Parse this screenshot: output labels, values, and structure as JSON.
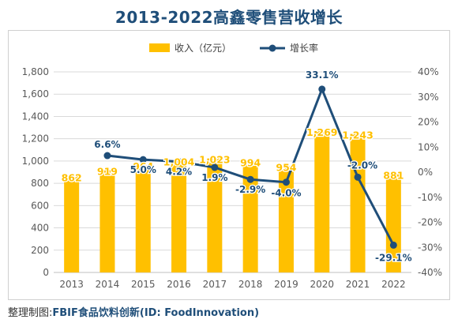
{
  "title": "2013-2022高鑫零售营收增长",
  "source": {
    "prefix": "整理制图:",
    "brand": "FBIF",
    "rest": "食品饮料创新(ID: FoodInnovation)"
  },
  "colors": {
    "bar": "#ffc000",
    "line": "#1f4e79",
    "bar_label": "#ffc000",
    "line_label": "#1f4e79",
    "axis_text": "#595959",
    "grid": "#d9d9d9"
  },
  "chart_data": {
    "type": "bar",
    "categories": [
      "2013",
      "2014",
      "2015",
      "2016",
      "2017",
      "2018",
      "2019",
      "2020",
      "2021",
      "2022"
    ],
    "series": [
      {
        "name": "收入（亿元）",
        "type": "bar",
        "axis": "left",
        "values": [
          862,
          919,
          964,
          1004,
          1023,
          994,
          954,
          1269,
          1243,
          881
        ],
        "labels": [
          "862",
          "919",
          "964",
          "1,004",
          "1,023",
          "994",
          "954",
          "1,269",
          "1,243",
          "881"
        ]
      },
      {
        "name": "增长率",
        "type": "line",
        "axis": "right",
        "values": [
          null,
          6.6,
          5.0,
          4.2,
          1.9,
          -2.9,
          -4.0,
          33.1,
          -2.0,
          -29.1
        ],
        "labels": [
          "",
          "6.6%",
          "5.0%",
          "4.2%",
          "1.9%",
          "-2.9%",
          "-4.0%",
          "33.1%",
          "-2.0%",
          "-29.1%"
        ]
      }
    ],
    "y_left": {
      "range": [
        0,
        1800
      ],
      "ticks": [
        "0",
        "200",
        "400",
        "600",
        "800",
        "1,000",
        "1,200",
        "1,400",
        "1,600",
        "1,800"
      ]
    },
    "y_right": {
      "range": [
        -40,
        40
      ],
      "ticks": [
        "-40%",
        "-30%",
        "-20%",
        "-10%",
        "0%",
        "10%",
        "20%",
        "30%",
        "40%"
      ]
    },
    "legend_position": "top",
    "grid": true
  }
}
